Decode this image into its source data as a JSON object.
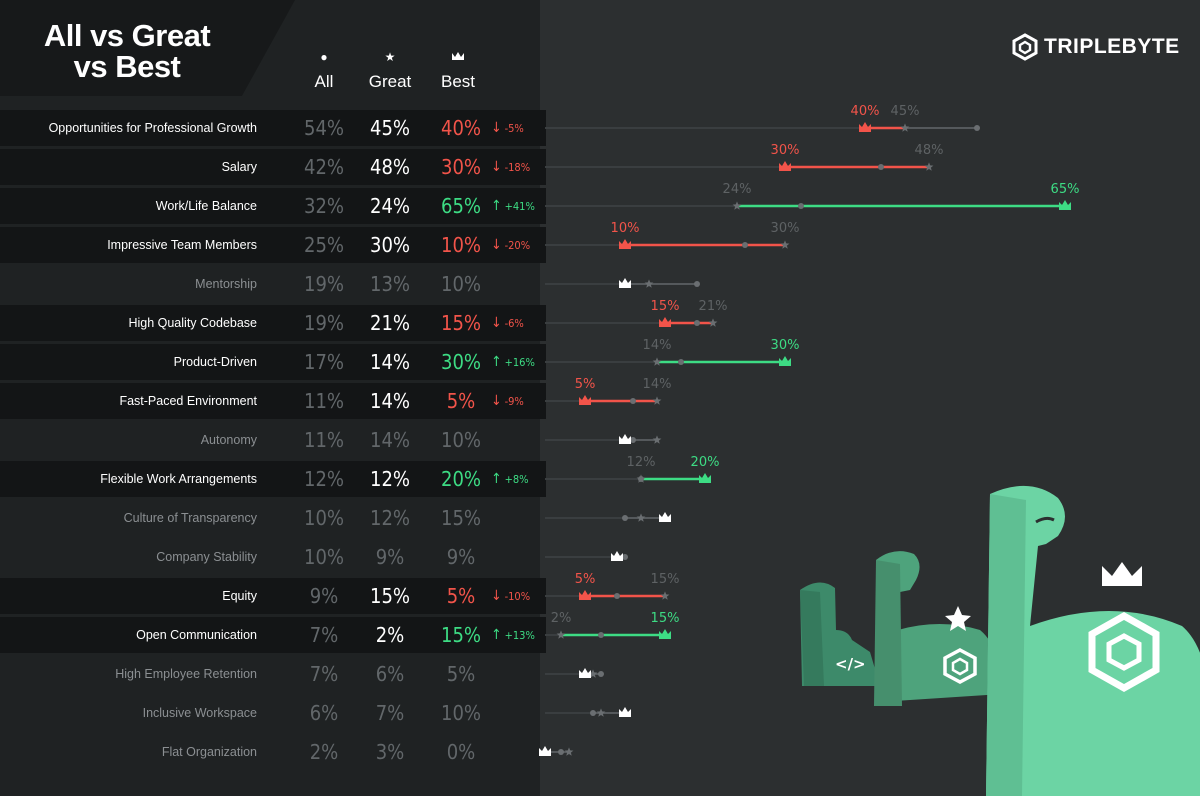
{
  "title": "All vs Great vs Best",
  "title_lines": [
    "All vs Great",
    "vs Best"
  ],
  "brand": "TRIPLEBYTE",
  "columns": {
    "all": "All",
    "great": "Great",
    "best": "Best"
  },
  "colors": {
    "red": "#f2544a",
    "green": "#3ddc84",
    "white": "#ffffff",
    "grey": "#62676a",
    "arm_dark": "#3d8a6a",
    "arm_mid": "#4ea37c",
    "arm_light": "#6cd4a4"
  },
  "chart_data": {
    "type": "dot-comparison",
    "title": "All vs Great vs Best",
    "series_names": [
      "All",
      "Great",
      "Best"
    ],
    "unit": "%",
    "rows": [
      {
        "label": "Opportunities for Professional Growth",
        "all": 54,
        "great": 45,
        "best": 40,
        "change": "-5%",
        "highlight": true
      },
      {
        "label": "Salary",
        "all": 42,
        "great": 48,
        "best": 30,
        "change": "-18%",
        "highlight": true
      },
      {
        "label": "Work/Life Balance",
        "all": 32,
        "great": 24,
        "best": 65,
        "change": "+41%",
        "highlight": true
      },
      {
        "label": "Impressive Team Members",
        "all": 25,
        "great": 30,
        "best": 10,
        "change": "-20%",
        "highlight": true
      },
      {
        "label": "Mentorship",
        "all": 19,
        "great": 13,
        "best": 10,
        "change": "",
        "highlight": false
      },
      {
        "label": "High Quality Codebase",
        "all": 19,
        "great": 21,
        "best": 15,
        "change": "-6%",
        "highlight": true
      },
      {
        "label": "Product-Driven",
        "all": 17,
        "great": 14,
        "best": 30,
        "change": "+16%",
        "highlight": true
      },
      {
        "label": "Fast-Paced Environment",
        "all": 11,
        "great": 14,
        "best": 5,
        "change": "-9%",
        "highlight": true
      },
      {
        "label": "Autonomy",
        "all": 11,
        "great": 14,
        "best": 10,
        "change": "",
        "highlight": false
      },
      {
        "label": "Flexible Work Arrangements",
        "all": 12,
        "great": 12,
        "best": 20,
        "change": "+8%",
        "highlight": true
      },
      {
        "label": "Culture of Transparency",
        "all": 10,
        "great": 12,
        "best": 15,
        "change": "",
        "highlight": false
      },
      {
        "label": "Company Stability",
        "all": 10,
        "great": 9,
        "best": 9,
        "change": "",
        "highlight": false
      },
      {
        "label": "Equity",
        "all": 9,
        "great": 15,
        "best": 5,
        "change": "-10%",
        "highlight": true
      },
      {
        "label": "Open Communication",
        "all": 7,
        "great": 2,
        "best": 15,
        "change": "+13%",
        "highlight": true
      },
      {
        "label": "High Employee Retention",
        "all": 7,
        "great": 6,
        "best": 5,
        "change": "",
        "highlight": false
      },
      {
        "label": "Inclusive Workspace",
        "all": 6,
        "great": 7,
        "best": 10,
        "change": "",
        "highlight": false
      },
      {
        "label": "Flat Organization",
        "all": 2,
        "great": 3,
        "best": 0,
        "change": "",
        "highlight": false
      }
    ],
    "xlim": [
      0,
      100
    ]
  }
}
